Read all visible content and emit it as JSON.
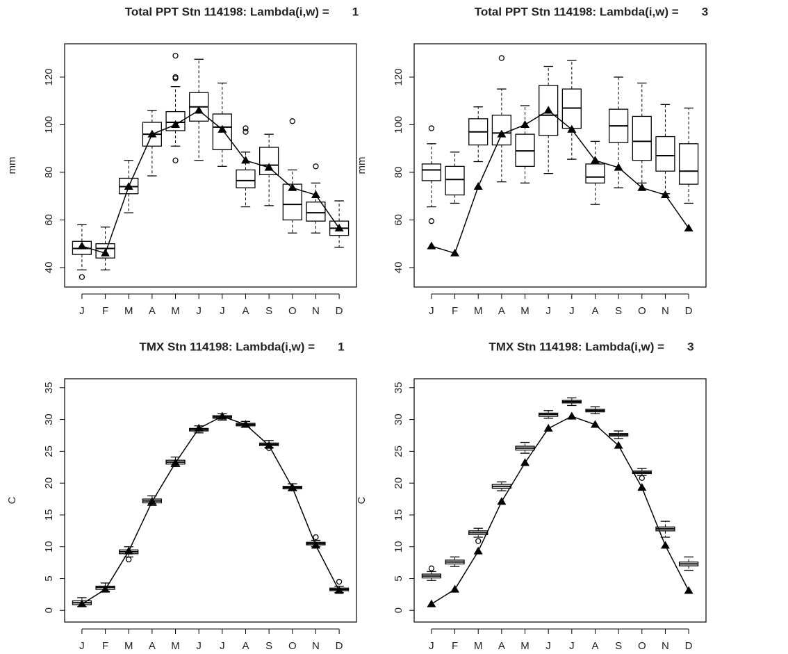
{
  "chart_data": [
    {
      "type": "box",
      "title": "Total PPT Stn 114198: Lambda(i,w) =       1",
      "ylabel": "mm",
      "categories": [
        "J",
        "F",
        "M",
        "A",
        "M",
        "J",
        "J",
        "A",
        "S",
        "O",
        "N",
        "D"
      ],
      "ylim": [
        31.8,
        134
      ],
      "yticks": [
        40,
        60,
        80,
        100,
        120
      ],
      "color": "#000000",
      "boxes": [
        {
          "whislo": 39,
          "q1": 45.5,
          "med": 48,
          "q3": 51,
          "whishi": 58,
          "fliers": [
            36
          ]
        },
        {
          "whislo": 39,
          "q1": 44,
          "med": 48,
          "q3": 50,
          "whishi": 57,
          "fliers": []
        },
        {
          "whislo": 63,
          "q1": 71,
          "med": 74,
          "q3": 77.5,
          "whishi": 85,
          "fliers": []
        },
        {
          "whislo": 78.5,
          "q1": 91,
          "med": 96,
          "q3": 101,
          "whishi": 106,
          "fliers": []
        },
        {
          "whislo": 91,
          "q1": 97.5,
          "med": 101,
          "q3": 105.5,
          "whishi": 116,
          "fliers": [
            85,
            119.5,
            120,
            129
          ]
        },
        {
          "whislo": 85,
          "q1": 101.5,
          "med": 107.5,
          "q3": 113.5,
          "whishi": 127.5,
          "fliers": []
        },
        {
          "whislo": 82.5,
          "q1": 89.5,
          "med": 99,
          "q3": 104.5,
          "whishi": 117.5,
          "fliers": []
        },
        {
          "whislo": 65.5,
          "q1": 73.5,
          "med": 76.5,
          "q3": 81,
          "whishi": 88.5,
          "fliers": [
            97,
            98.5
          ]
        },
        {
          "whislo": 66,
          "q1": 79,
          "med": 83,
          "q3": 90.5,
          "whishi": 96,
          "fliers": []
        },
        {
          "whislo": 54.5,
          "q1": 60,
          "med": 66.5,
          "q3": 75,
          "whishi": 81,
          "fliers": [
            101.5
          ]
        },
        {
          "whislo": 54.5,
          "q1": 59.5,
          "med": 63,
          "q3": 67.5,
          "whishi": 75.5,
          "fliers": [
            82.5
          ]
        },
        {
          "whislo": 48.5,
          "q1": 53.5,
          "med": 56.5,
          "q3": 59.5,
          "whishi": 68,
          "fliers": []
        }
      ],
      "line_values": [
        49,
        46,
        74,
        96,
        100,
        106,
        98,
        85,
        82,
        73.5,
        70.5,
        56.5
      ]
    },
    {
      "type": "box",
      "title": "Total PPT Stn 114198: Lambda(i,w) =       3",
      "ylabel": "mm",
      "categories": [
        "J",
        "F",
        "M",
        "A",
        "M",
        "J",
        "J",
        "A",
        "S",
        "O",
        "N",
        "D"
      ],
      "ylim": [
        31.8,
        134
      ],
      "yticks": [
        40,
        60,
        80,
        100,
        120
      ],
      "color": "#000000",
      "boxes": [
        {
          "whislo": 65.5,
          "q1": 76.5,
          "med": 81,
          "q3": 83.5,
          "whishi": 92,
          "fliers": [
            98.5,
            59.5
          ]
        },
        {
          "whislo": 67,
          "q1": 70.5,
          "med": 77,
          "q3": 82.5,
          "whishi": 88.5,
          "fliers": []
        },
        {
          "whislo": 84.5,
          "q1": 91.5,
          "med": 97,
          "q3": 102.5,
          "whishi": 107.5,
          "fliers": []
        },
        {
          "whislo": 76,
          "q1": 91.5,
          "med": 96.5,
          "q3": 104,
          "whishi": 115,
          "fliers": [
            128
          ]
        },
        {
          "whislo": 75.5,
          "q1": 82.5,
          "med": 89,
          "q3": 96,
          "whishi": 108,
          "fliers": []
        },
        {
          "whislo": 79.5,
          "q1": 95.5,
          "med": 104,
          "q3": 116.5,
          "whishi": 124.5,
          "fliers": []
        },
        {
          "whislo": 85.5,
          "q1": 98.5,
          "med": 107,
          "q3": 115,
          "whishi": 127,
          "fliers": []
        },
        {
          "whislo": 66.5,
          "q1": 75.5,
          "med": 78,
          "q3": 83.5,
          "whishi": 93,
          "fliers": []
        },
        {
          "whislo": 73.5,
          "q1": 92.5,
          "med": 99.5,
          "q3": 106.5,
          "whishi": 120,
          "fliers": []
        },
        {
          "whislo": 75.5,
          "q1": 85,
          "med": 93,
          "q3": 103.5,
          "whishi": 117.5,
          "fliers": []
        },
        {
          "whislo": 71,
          "q1": 80.5,
          "med": 87,
          "q3": 95,
          "whishi": 108.5,
          "fliers": []
        },
        {
          "whislo": 67,
          "q1": 75,
          "med": 80.5,
          "q3": 92,
          "whishi": 107,
          "fliers": []
        }
      ],
      "line_values": [
        49,
        46,
        74,
        96,
        100,
        106,
        98,
        85,
        82,
        73.5,
        70.5,
        56.5
      ]
    },
    {
      "type": "box",
      "title": "TMX Stn 114198: Lambda(i,w) =       1",
      "ylabel": "C",
      "categories": [
        "J",
        "F",
        "M",
        "A",
        "M",
        "J",
        "J",
        "A",
        "S",
        "O",
        "N",
        "D"
      ],
      "ylim": [
        -1.83,
        36.4
      ],
      "yticks": [
        0,
        5,
        10,
        15,
        20,
        25,
        30,
        35
      ],
      "color": "#000000",
      "boxes": [
        {
          "whislo": 0.6,
          "q1": 0.9,
          "med": 1.2,
          "q3": 1.5,
          "whishi": 2.0,
          "fliers": []
        },
        {
          "whislo": 3.0,
          "q1": 3.3,
          "med": 3.6,
          "q3": 3.8,
          "whishi": 4.3,
          "fliers": []
        },
        {
          "whislo": 8.4,
          "q1": 8.9,
          "med": 9.2,
          "q3": 9.5,
          "whishi": 10.0,
          "fliers": [
            8.0
          ]
        },
        {
          "whislo": 16.5,
          "q1": 16.9,
          "med": 17.2,
          "q3": 17.5,
          "whishi": 18.0,
          "fliers": []
        },
        {
          "whislo": 22.6,
          "q1": 23.0,
          "med": 23.3,
          "q3": 23.6,
          "whishi": 24.1,
          "fliers": []
        },
        {
          "whislo": 27.9,
          "q1": 28.2,
          "med": 28.4,
          "q3": 28.6,
          "whishi": 29.0,
          "fliers": []
        },
        {
          "whislo": 29.9,
          "q1": 30.2,
          "med": 30.4,
          "q3": 30.6,
          "whishi": 30.9,
          "fliers": []
        },
        {
          "whislo": 28.8,
          "q1": 29.0,
          "med": 29.2,
          "q3": 29.4,
          "whishi": 29.7,
          "fliers": []
        },
        {
          "whislo": 25.6,
          "q1": 25.9,
          "med": 26.1,
          "q3": 26.3,
          "whishi": 26.7,
          "fliers": [
            25.5
          ]
        },
        {
          "whislo": 18.8,
          "q1": 19.1,
          "med": 19.3,
          "q3": 19.5,
          "whishi": 19.9,
          "fliers": []
        },
        {
          "whislo": 10.0,
          "q1": 10.3,
          "med": 10.5,
          "q3": 10.7,
          "whishi": 11.0,
          "fliers": [
            11.5
          ]
        },
        {
          "whislo": 2.8,
          "q1": 3.1,
          "med": 3.3,
          "q3": 3.5,
          "whishi": 3.8,
          "fliers": [
            4.5
          ]
        }
      ],
      "line_values": [
        1,
        3.3,
        9.3,
        17.1,
        23.2,
        28.6,
        30.5,
        29.2,
        25.9,
        19.3,
        10.2,
        3.1
      ]
    },
    {
      "type": "box",
      "title": "TMX Stn 114198: Lambda(i,w) =       3",
      "ylabel": "C",
      "categories": [
        "J",
        "F",
        "M",
        "A",
        "M",
        "J",
        "J",
        "A",
        "S",
        "O",
        "N",
        "D"
      ],
      "ylim": [
        -1.83,
        36.4
      ],
      "yticks": [
        0,
        5,
        10,
        15,
        20,
        25,
        30,
        35
      ],
      "color": "#000000",
      "boxes": [
        {
          "whislo": 4.7,
          "q1": 5.1,
          "med": 5.4,
          "q3": 5.7,
          "whishi": 6.1,
          "fliers": [
            6.6
          ]
        },
        {
          "whislo": 6.9,
          "q1": 7.3,
          "med": 7.6,
          "q3": 7.9,
          "whishi": 8.4,
          "fliers": []
        },
        {
          "whislo": 11.5,
          "q1": 11.9,
          "med": 12.2,
          "q3": 12.5,
          "whishi": 12.9,
          "fliers": [
            10.9
          ]
        },
        {
          "whislo": 18.8,
          "q1": 19.2,
          "med": 19.5,
          "q3": 19.8,
          "whishi": 20.2,
          "fliers": []
        },
        {
          "whislo": 24.7,
          "q1": 25.2,
          "med": 25.5,
          "q3": 25.8,
          "whishi": 26.4,
          "fliers": []
        },
        {
          "whislo": 30.2,
          "q1": 30.5,
          "med": 30.8,
          "q3": 31.0,
          "whishi": 31.4,
          "fliers": []
        },
        {
          "whislo": 32.2,
          "q1": 32.6,
          "med": 32.8,
          "q3": 33.0,
          "whishi": 33.4,
          "fliers": []
        },
        {
          "whislo": 30.9,
          "q1": 31.2,
          "med": 31.4,
          "q3": 31.6,
          "whishi": 32.0,
          "fliers": []
        },
        {
          "whislo": 27.0,
          "q1": 27.4,
          "med": 27.6,
          "q3": 27.8,
          "whishi": 28.2,
          "fliers": []
        },
        {
          "whislo": 21.2,
          "q1": 21.5,
          "med": 21.7,
          "q3": 21.9,
          "whishi": 22.3,
          "fliers": [
            20.8
          ]
        },
        {
          "whislo": 11.5,
          "q1": 12.5,
          "med": 12.8,
          "q3": 13.1,
          "whishi": 14.0,
          "fliers": []
        },
        {
          "whislo": 6.3,
          "q1": 7.0,
          "med": 7.3,
          "q3": 7.6,
          "whishi": 8.4,
          "fliers": []
        }
      ],
      "line_values": [
        1,
        3.3,
        9.3,
        17.1,
        23.2,
        28.6,
        30.5,
        29.2,
        25.9,
        19.3,
        10.2,
        3.1
      ]
    }
  ]
}
